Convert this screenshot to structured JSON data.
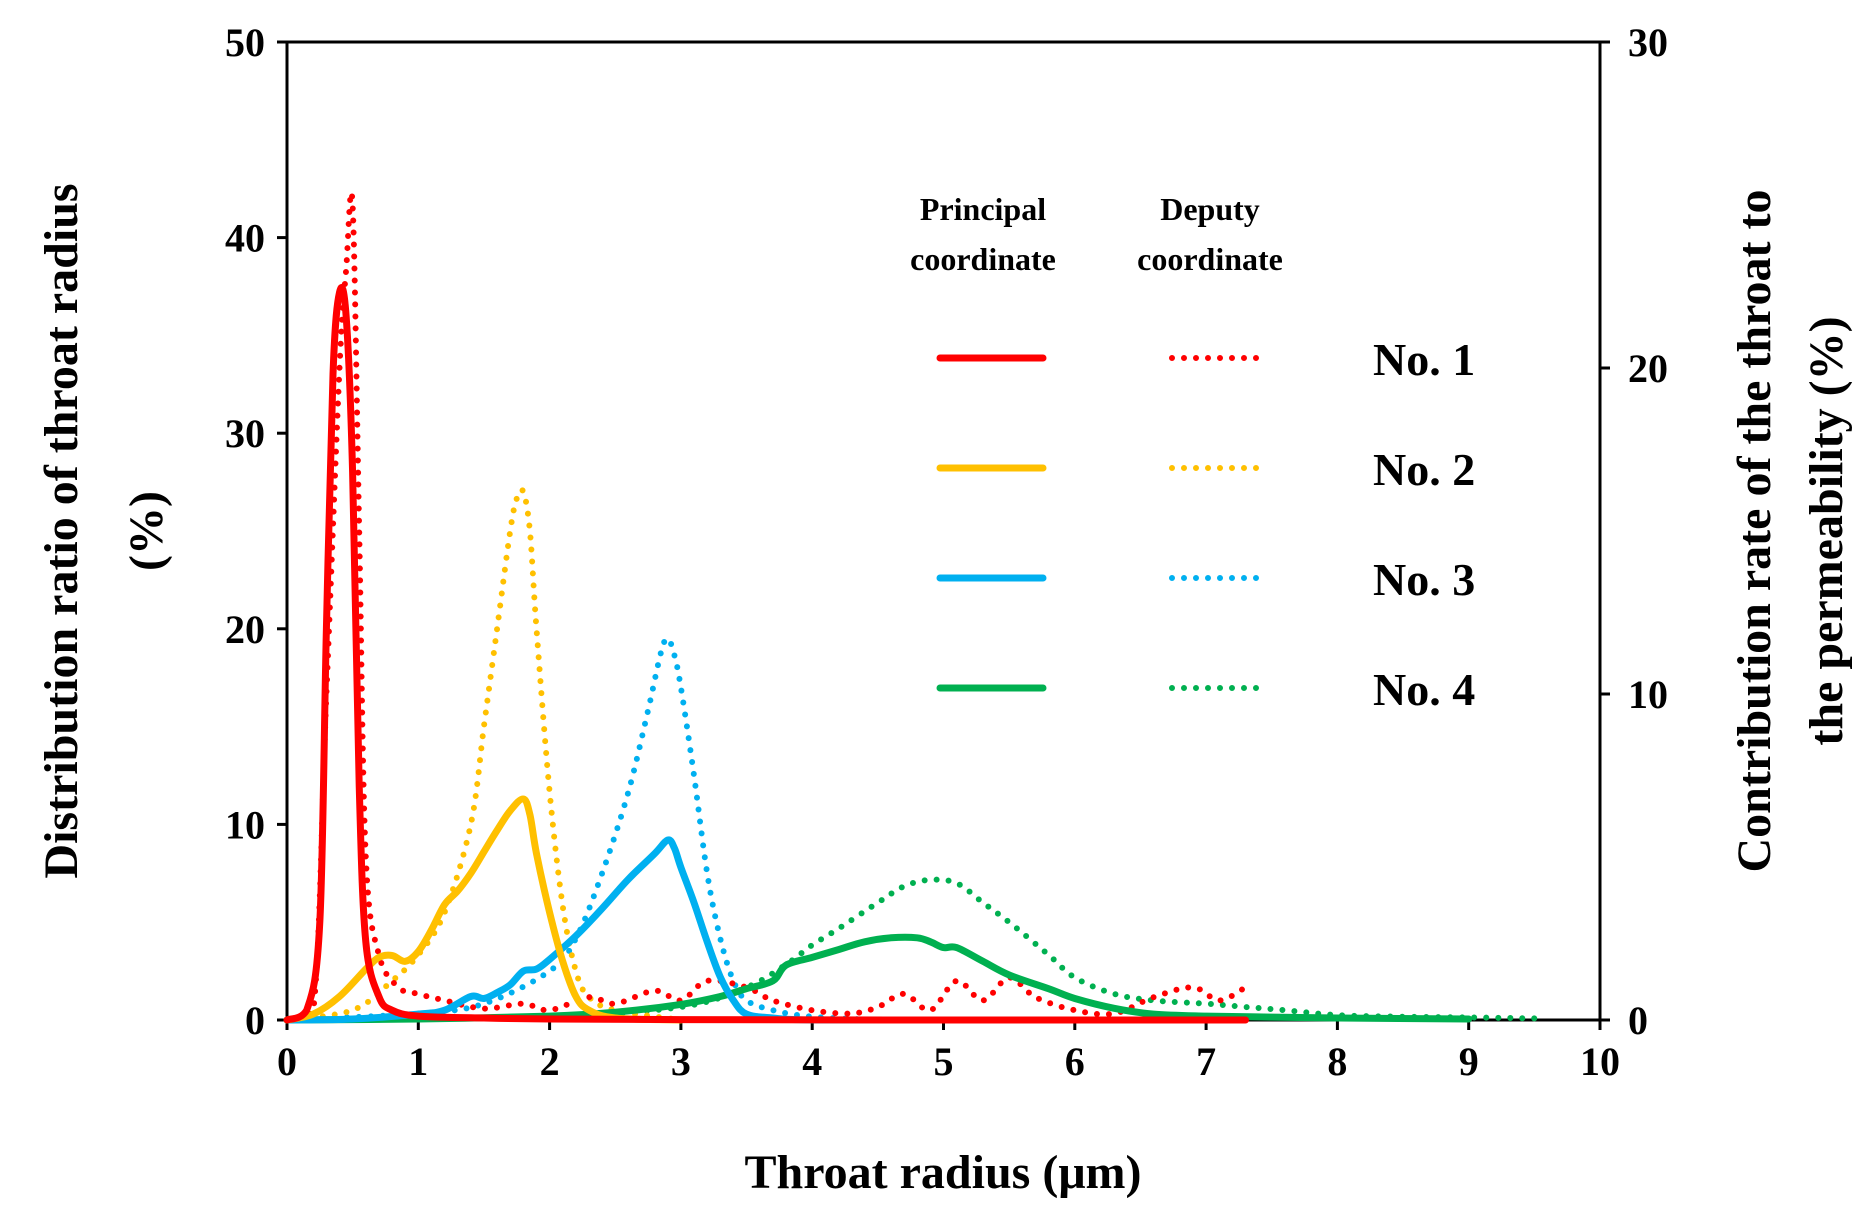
{
  "chart_data": {
    "type": "line",
    "xlabel": "Throat radius (μm)",
    "ylabel_left": [
      "Distribution ratio of throat radius",
      "(%)"
    ],
    "ylabel_right": [
      "Contribution rate of the throat to",
      "the permeability (%)"
    ],
    "xlim": [
      0,
      10
    ],
    "ylim_left": [
      0,
      50
    ],
    "ylim_right": [
      0,
      30
    ],
    "x_ticks": [
      "0",
      "1",
      "2",
      "3",
      "4",
      "5",
      "6",
      "7",
      "8",
      "9",
      "10"
    ],
    "y_left_ticks": [
      "0",
      "10",
      "20",
      "30",
      "40",
      "50"
    ],
    "y_right_ticks": [
      "0",
      "10",
      "20",
      "30"
    ],
    "legend": {
      "principal_header": [
        "Principal",
        "coordinate"
      ],
      "deputy_header": [
        "Deputy",
        "coordinate"
      ]
    },
    "series": [
      {
        "name": "No. 1",
        "color": "#ff0000",
        "principal": [
          [
            0,
            0
          ],
          [
            0.15,
            0.5
          ],
          [
            0.25,
            5
          ],
          [
            0.3,
            20
          ],
          [
            0.35,
            33
          ],
          [
            0.4,
            37.2
          ],
          [
            0.45,
            36
          ],
          [
            0.5,
            28
          ],
          [
            0.55,
            12
          ],
          [
            0.6,
            4
          ],
          [
            0.7,
            1.2
          ],
          [
            0.8,
            0.5
          ],
          [
            1,
            0.2
          ],
          [
            1.5,
            0.1
          ],
          [
            2,
            0.05
          ],
          [
            3,
            0.02
          ],
          [
            5,
            0
          ],
          [
            7.3,
            0
          ]
        ],
        "deputy": [
          [
            0,
            0
          ],
          [
            0.2,
            0.3
          ],
          [
            0.3,
            10
          ],
          [
            0.4,
            20
          ],
          [
            0.45,
            23
          ],
          [
            0.5,
            25
          ],
          [
            0.55,
            15
          ],
          [
            0.6,
            5
          ],
          [
            0.7,
            2
          ],
          [
            0.85,
            1
          ],
          [
            1,
            0.8
          ],
          [
            1.2,
            0.6
          ],
          [
            1.5,
            0.35
          ],
          [
            1.8,
            0.5
          ],
          [
            2,
            0.3
          ],
          [
            2.3,
            0.7
          ],
          [
            2.5,
            0.5
          ],
          [
            2.8,
            0.9
          ],
          [
            3,
            0.6
          ],
          [
            3.2,
            1.2
          ],
          [
            3.5,
            1
          ],
          [
            3.7,
            0.6
          ],
          [
            4,
            0.3
          ],
          [
            4.3,
            0.2
          ],
          [
            4.5,
            0.4
          ],
          [
            4.7,
            0.8
          ],
          [
            4.9,
            0.3
          ],
          [
            5.1,
            1.2
          ],
          [
            5.3,
            0.6
          ],
          [
            5.5,
            1.3
          ],
          [
            5.7,
            0.7
          ],
          [
            6,
            0.3
          ],
          [
            6.3,
            0.2
          ],
          [
            6.6,
            0.7
          ],
          [
            6.9,
            1
          ],
          [
            7.1,
            0.6
          ],
          [
            7.3,
            1
          ]
        ]
      },
      {
        "name": "No. 2",
        "color": "#ffc000",
        "principal": [
          [
            0,
            0
          ],
          [
            0.2,
            0.3
          ],
          [
            0.4,
            1.2
          ],
          [
            0.6,
            2.6
          ],
          [
            0.7,
            3.2
          ],
          [
            0.8,
            3.3
          ],
          [
            0.9,
            3
          ],
          [
            1,
            3.5
          ],
          [
            1.1,
            4.6
          ],
          [
            1.2,
            5.9
          ],
          [
            1.3,
            6.6
          ],
          [
            1.4,
            7.5
          ],
          [
            1.5,
            8.6
          ],
          [
            1.6,
            9.7
          ],
          [
            1.7,
            10.7
          ],
          [
            1.8,
            11.3
          ],
          [
            1.85,
            10.5
          ],
          [
            1.9,
            8.5
          ],
          [
            2,
            5.5
          ],
          [
            2.1,
            3
          ],
          [
            2.2,
            1.2
          ],
          [
            2.3,
            0.5
          ],
          [
            2.5,
            0.1
          ],
          [
            3,
            0
          ]
        ],
        "deputy": [
          [
            0,
            0
          ],
          [
            0.5,
            0.3
          ],
          [
            0.8,
            1.2
          ],
          [
            1,
            2
          ],
          [
            1.2,
            3.3
          ],
          [
            1.4,
            6
          ],
          [
            1.5,
            9
          ],
          [
            1.6,
            12
          ],
          [
            1.7,
            15
          ],
          [
            1.75,
            16
          ],
          [
            1.8,
            16.2
          ],
          [
            1.85,
            15
          ],
          [
            1.9,
            12
          ],
          [
            2,
            7
          ],
          [
            2.1,
            3.5
          ],
          [
            2.2,
            1.5
          ],
          [
            2.3,
            0.7
          ],
          [
            2.5,
            0.3
          ],
          [
            3,
            0
          ]
        ]
      },
      {
        "name": "No. 3",
        "color": "#00b0f0",
        "principal": [
          [
            0,
            0
          ],
          [
            0.5,
            0.05
          ],
          [
            1,
            0.3
          ],
          [
            1.2,
            0.5
          ],
          [
            1.4,
            1.2
          ],
          [
            1.5,
            1.1
          ],
          [
            1.6,
            1.4
          ],
          [
            1.7,
            1.8
          ],
          [
            1.8,
            2.5
          ],
          [
            1.9,
            2.6
          ],
          [
            2,
            3.1
          ],
          [
            2.2,
            4.3
          ],
          [
            2.4,
            5.7
          ],
          [
            2.6,
            7.2
          ],
          [
            2.8,
            8.5
          ],
          [
            2.9,
            9.2
          ],
          [
            2.95,
            8.8
          ],
          [
            3,
            7.8
          ],
          [
            3.1,
            6
          ],
          [
            3.2,
            4
          ],
          [
            3.3,
            2.2
          ],
          [
            3.4,
            1
          ],
          [
            3.5,
            0.3
          ],
          [
            3.7,
            0.1
          ],
          [
            4,
            0
          ],
          [
            5,
            0
          ]
        ],
        "deputy": [
          [
            0,
            0
          ],
          [
            1,
            0.2
          ],
          [
            1.5,
            0.5
          ],
          [
            2,
            1.5
          ],
          [
            2.2,
            2.5
          ],
          [
            2.4,
            4.5
          ],
          [
            2.6,
            7
          ],
          [
            2.75,
            9.5
          ],
          [
            2.85,
            11.3
          ],
          [
            2.9,
            11.7
          ],
          [
            2.95,
            11.2
          ],
          [
            3,
            10.2
          ],
          [
            3.1,
            7.5
          ],
          [
            3.2,
            4.5
          ],
          [
            3.3,
            2.5
          ],
          [
            3.4,
            1.2
          ],
          [
            3.5,
            0.6
          ],
          [
            3.7,
            0.3
          ],
          [
            4,
            0.1
          ],
          [
            4.5,
            0
          ]
        ]
      },
      {
        "name": "No. 4",
        "color": "#00b050",
        "principal": [
          [
            0,
            0
          ],
          [
            1,
            0.05
          ],
          [
            2,
            0.2
          ],
          [
            2.5,
            0.4
          ],
          [
            3,
            0.8
          ],
          [
            3.3,
            1.2
          ],
          [
            3.5,
            1.6
          ],
          [
            3.7,
            2
          ],
          [
            3.8,
            2.8
          ],
          [
            4,
            3.2
          ],
          [
            4.2,
            3.6
          ],
          [
            4.4,
            4
          ],
          [
            4.6,
            4.2
          ],
          [
            4.8,
            4.2
          ],
          [
            4.9,
            4
          ],
          [
            5,
            3.7
          ],
          [
            5.1,
            3.7
          ],
          [
            5.3,
            3
          ],
          [
            5.5,
            2.3
          ],
          [
            5.8,
            1.6
          ],
          [
            6,
            1.1
          ],
          [
            6.3,
            0.6
          ],
          [
            6.6,
            0.3
          ],
          [
            7,
            0.2
          ],
          [
            7.5,
            0.15
          ],
          [
            8,
            0.1
          ],
          [
            9,
            0.05
          ]
        ],
        "deputy": [
          [
            0,
            0
          ],
          [
            1,
            0.05
          ],
          [
            2,
            0.1
          ],
          [
            3,
            0.4
          ],
          [
            3.5,
            1
          ],
          [
            3.8,
            1.7
          ],
          [
            4,
            2.3
          ],
          [
            4.2,
            2.8
          ],
          [
            4.5,
            3.6
          ],
          [
            4.7,
            4.1
          ],
          [
            4.9,
            4.3
          ],
          [
            5.1,
            4.2
          ],
          [
            5.3,
            3.6
          ],
          [
            5.5,
            3
          ],
          [
            5.8,
            2
          ],
          [
            6,
            1.3
          ],
          [
            6.3,
            0.8
          ],
          [
            6.6,
            0.6
          ],
          [
            7,
            0.5
          ],
          [
            7.3,
            0.4
          ],
          [
            7.6,
            0.3
          ],
          [
            8,
            0.15
          ],
          [
            8.5,
            0.1
          ],
          [
            9,
            0.08
          ],
          [
            9.5,
            0.05
          ]
        ]
      }
    ]
  }
}
